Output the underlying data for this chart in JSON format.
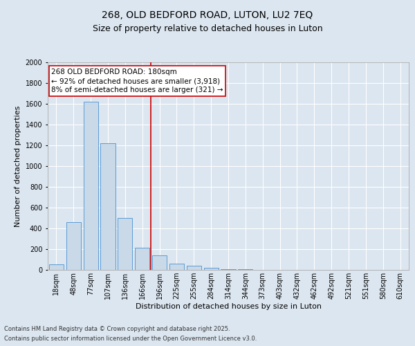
{
  "title_line1": "268, OLD BEDFORD ROAD, LUTON, LU2 7EQ",
  "title_line2": "Size of property relative to detached houses in Luton",
  "xlabel": "Distribution of detached houses by size in Luton",
  "ylabel": "Number of detached properties",
  "categories": [
    "18sqm",
    "48sqm",
    "77sqm",
    "107sqm",
    "136sqm",
    "166sqm",
    "196sqm",
    "225sqm",
    "255sqm",
    "284sqm",
    "314sqm",
    "344sqm",
    "373sqm",
    "403sqm",
    "432sqm",
    "462sqm",
    "492sqm",
    "521sqm",
    "551sqm",
    "580sqm",
    "610sqm"
  ],
  "values": [
    55,
    460,
    1620,
    1220,
    500,
    215,
    140,
    60,
    40,
    20,
    10,
    5,
    3,
    2,
    1,
    1,
    0,
    0,
    0,
    0,
    0
  ],
  "bar_color": "#c9d9e8",
  "bar_edge_color": "#5b9bd5",
  "vline_x_index": 5,
  "vline_color": "#cc0000",
  "annotation_text": "268 OLD BEDFORD ROAD: 180sqm\n← 92% of detached houses are smaller (3,918)\n8% of semi-detached houses are larger (321) →",
  "annotation_box_color": "#ffffff",
  "annotation_box_edge_color": "#cc0000",
  "ylim": [
    0,
    2000
  ],
  "yticks": [
    0,
    200,
    400,
    600,
    800,
    1000,
    1200,
    1400,
    1600,
    1800,
    2000
  ],
  "background_color": "#dce6f0",
  "plot_bg_color": "#dce6f0",
  "footer_line1": "Contains HM Land Registry data © Crown copyright and database right 2025.",
  "footer_line2": "Contains public sector information licensed under the Open Government Licence v3.0.",
  "title_fontsize": 10,
  "subtitle_fontsize": 9,
  "axis_label_fontsize": 8,
  "tick_fontsize": 7,
  "annotation_fontsize": 7.5,
  "footer_fontsize": 6
}
